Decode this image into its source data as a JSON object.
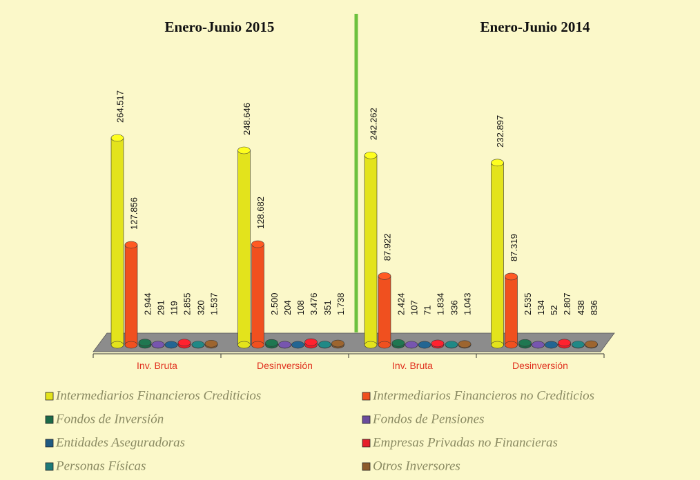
{
  "chart_data": {
    "type": "bar",
    "group_titles": [
      "Enero-Junio 2015",
      "Enero-Junio 2014"
    ],
    "categories": [
      "Inv. Bruta",
      "Desinversión",
      "Inv. Bruta",
      "Desinversión"
    ],
    "series": [
      {
        "name": "Intermediarios Financieros Crediticios",
        "color": "#e3e31c",
        "values": [
          264517,
          248646,
          242262,
          232897
        ],
        "value_labels": [
          "264.517",
          "248.646",
          "242.262",
          "232.897"
        ]
      },
      {
        "name": "Intermediarios Financieros no Crediticios",
        "color": "#f0501f",
        "values": [
          127856,
          128682,
          87922,
          87319
        ],
        "value_labels": [
          "127.856",
          "128.682",
          "87.922",
          "87.319"
        ]
      },
      {
        "name": "Fondos de Inversión",
        "color": "#1c6a48",
        "values": [
          2944,
          2500,
          2424,
          2535
        ],
        "value_labels": [
          "2.944",
          "2.500",
          "2.424",
          "2.535"
        ]
      },
      {
        "name": "Fondos de Pensiones",
        "color": "#6a4c9c",
        "values": [
          291,
          204,
          107,
          134
        ],
        "value_labels": [
          "291",
          "204",
          "107",
          "134"
        ]
      },
      {
        "name": "Entidades Aseguradoras",
        "color": "#1f5a82",
        "values": [
          119,
          108,
          71,
          52
        ],
        "value_labels": [
          "119",
          "108",
          "71",
          "52"
        ]
      },
      {
        "name": "Empresas Privadas no Financieras",
        "color": "#e61e2a",
        "values": [
          2855,
          3476,
          1834,
          2807
        ],
        "value_labels": [
          "2.855",
          "3.476",
          "1.834",
          "2.807"
        ]
      },
      {
        "name": "Personas Físicas",
        "color": "#1d7a78",
        "values": [
          320,
          351,
          336,
          438
        ],
        "value_labels": [
          "320",
          "351",
          "336",
          "438"
        ]
      },
      {
        "name": "Otros Inversores",
        "color": "#8c5a2a",
        "values": [
          1537,
          1738,
          1043,
          836
        ],
        "value_labels": [
          "1.537",
          "1.738",
          "1.043",
          "836"
        ]
      }
    ]
  }
}
